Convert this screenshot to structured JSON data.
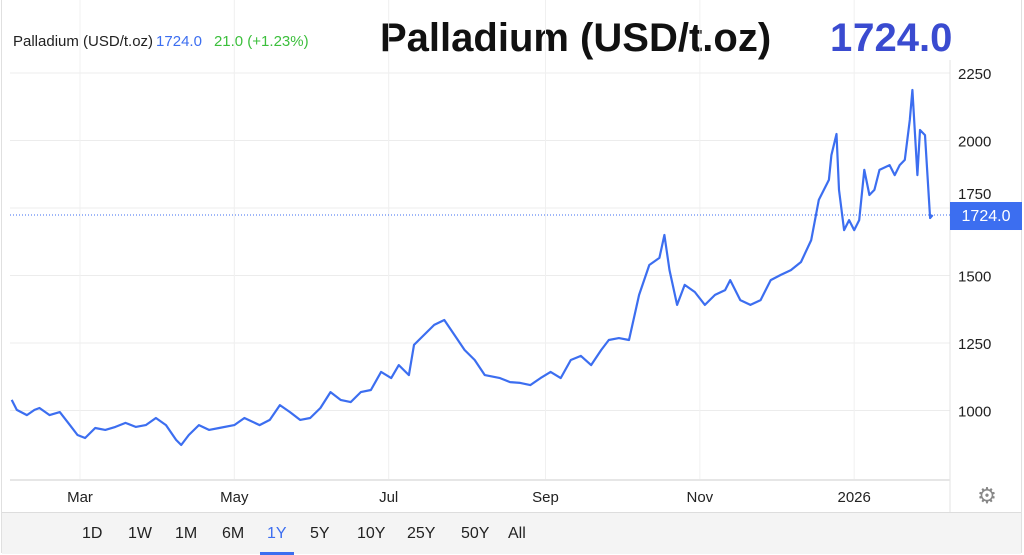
{
  "header": {
    "legend_name": "Palladium (USD/t.oz)",
    "legend_last": "1724.0",
    "legend_change": "21.0 (+1.23%)",
    "title": "Palladium (USD/t.oz)",
    "price": "1724.0"
  },
  "colors": {
    "line": "#3c6ef0",
    "change_positive": "#3cbf3c",
    "price_badge": "#3c6ef0",
    "title_price": "#3a4bd0"
  },
  "range_buttons": [
    {
      "label": "1D"
    },
    {
      "label": "1W"
    },
    {
      "label": "1M"
    },
    {
      "label": "6M"
    },
    {
      "label": "1Y",
      "active": true
    },
    {
      "label": "5Y"
    },
    {
      "label": "10Y"
    },
    {
      "label": "25Y"
    },
    {
      "label": "50Y"
    },
    {
      "label": "All"
    }
  ],
  "settings_icon": "gear-icon",
  "chart_data": {
    "type": "line",
    "title": "Palladium (USD/t.oz)",
    "xlabel": "",
    "ylabel": "",
    "ylim": [
      742,
      2300
    ],
    "grid": true,
    "y_axis_side": "right",
    "y_ticks": [
      1000,
      1250,
      1500,
      1750,
      2000,
      2250
    ],
    "x_ticks": [
      {
        "label": "Mar",
        "date": "2025-03-01"
      },
      {
        "label": "May",
        "date": "2025-05-01"
      },
      {
        "label": "Jul",
        "date": "2025-07-01"
      },
      {
        "label": "Sep",
        "date": "2025-09-01"
      },
      {
        "label": "Nov",
        "date": "2025-11-01"
      },
      {
        "label": "2026",
        "date": "2026-01-01"
      }
    ],
    "last_value": 1724.0,
    "last_value_label": "1724.0",
    "series": [
      {
        "points": [
          [
            "2025-02-02",
            1039
          ],
          [
            "2025-02-04",
            1002
          ],
          [
            "2025-02-08",
            983
          ],
          [
            "2025-02-11",
            1002
          ],
          [
            "2025-02-13",
            1009
          ],
          [
            "2025-02-17",
            983
          ],
          [
            "2025-02-21",
            994
          ],
          [
            "2025-02-25",
            946
          ],
          [
            "2025-02-28",
            909
          ],
          [
            "2025-03-03",
            898
          ],
          [
            "2025-03-07",
            935
          ],
          [
            "2025-03-11",
            928
          ],
          [
            "2025-03-15",
            939
          ],
          [
            "2025-03-19",
            954
          ],
          [
            "2025-03-23",
            939
          ],
          [
            "2025-03-27",
            946
          ],
          [
            "2025-03-31",
            972
          ],
          [
            "2025-04-04",
            946
          ],
          [
            "2025-04-08",
            891
          ],
          [
            "2025-04-10",
            872
          ],
          [
            "2025-04-13",
            909
          ],
          [
            "2025-04-17",
            946
          ],
          [
            "2025-04-21",
            928
          ],
          [
            "2025-04-25",
            935
          ],
          [
            "2025-05-01",
            946
          ],
          [
            "2025-05-05",
            972
          ],
          [
            "2025-05-11",
            946
          ],
          [
            "2025-05-15",
            965
          ],
          [
            "2025-05-19",
            1020
          ],
          [
            "2025-05-23",
            994
          ],
          [
            "2025-05-27",
            965
          ],
          [
            "2025-05-31",
            972
          ],
          [
            "2025-06-04",
            1009
          ],
          [
            "2025-06-08",
            1068
          ],
          [
            "2025-06-12",
            1039
          ],
          [
            "2025-06-16",
            1031
          ],
          [
            "2025-06-20",
            1068
          ],
          [
            "2025-06-24",
            1076
          ],
          [
            "2025-06-28",
            1143
          ],
          [
            "2025-07-02",
            1120
          ],
          [
            "2025-07-05",
            1168
          ],
          [
            "2025-07-09",
            1131
          ],
          [
            "2025-07-11",
            1243
          ],
          [
            "2025-07-15",
            1280
          ],
          [
            "2025-07-19",
            1317
          ],
          [
            "2025-07-23",
            1335
          ],
          [
            "2025-07-27",
            1280
          ],
          [
            "2025-07-31",
            1224
          ],
          [
            "2025-08-04",
            1187
          ],
          [
            "2025-08-08",
            1131
          ],
          [
            "2025-08-14",
            1120
          ],
          [
            "2025-08-18",
            1105
          ],
          [
            "2025-08-22",
            1102
          ],
          [
            "2025-08-26",
            1094
          ],
          [
            "2025-08-30",
            1120
          ],
          [
            "2025-09-03",
            1143
          ],
          [
            "2025-09-07",
            1120
          ],
          [
            "2025-09-11",
            1187
          ],
          [
            "2025-09-15",
            1202
          ],
          [
            "2025-09-19",
            1168
          ],
          [
            "2025-09-23",
            1224
          ],
          [
            "2025-09-26",
            1261
          ],
          [
            "2025-09-30",
            1268
          ],
          [
            "2025-10-04",
            1261
          ],
          [
            "2025-10-08",
            1428
          ],
          [
            "2025-10-12",
            1539
          ],
          [
            "2025-10-16",
            1565
          ],
          [
            "2025-10-18",
            1650
          ],
          [
            "2025-10-20",
            1520
          ],
          [
            "2025-10-23",
            1391
          ],
          [
            "2025-10-26",
            1465
          ],
          [
            "2025-10-30",
            1439
          ],
          [
            "2025-11-03",
            1391
          ],
          [
            "2025-11-07",
            1428
          ],
          [
            "2025-11-11",
            1446
          ],
          [
            "2025-11-13",
            1483
          ],
          [
            "2025-11-17",
            1409
          ],
          [
            "2025-11-21",
            1391
          ],
          [
            "2025-11-25",
            1409
          ],
          [
            "2025-11-29",
            1483
          ],
          [
            "2025-12-03",
            1502
          ],
          [
            "2025-12-07",
            1520
          ],
          [
            "2025-12-11",
            1550
          ],
          [
            "2025-12-15",
            1631
          ],
          [
            "2025-12-18",
            1780
          ],
          [
            "2025-12-22",
            1854
          ],
          [
            "2025-12-23",
            1946
          ],
          [
            "2025-12-25",
            2024
          ],
          [
            "2025-12-26",
            1817
          ],
          [
            "2025-12-28",
            1668
          ],
          [
            "2025-12-30",
            1705
          ],
          [
            "2026-01-01",
            1668
          ],
          [
            "2026-01-03",
            1705
          ],
          [
            "2026-01-05",
            1891
          ],
          [
            "2026-01-07",
            1798
          ],
          [
            "2026-01-09",
            1817
          ],
          [
            "2026-01-11",
            1891
          ],
          [
            "2026-01-15",
            1909
          ],
          [
            "2026-01-17",
            1872
          ],
          [
            "2026-01-19",
            1909
          ],
          [
            "2026-01-21",
            1928
          ],
          [
            "2026-01-23",
            2076
          ],
          [
            "2026-01-24",
            2187
          ],
          [
            "2026-01-26",
            1872
          ],
          [
            "2026-01-27",
            2039
          ],
          [
            "2026-01-29",
            2020
          ],
          [
            "2026-01-31",
            1713
          ],
          [
            "2026-02-01",
            1724
          ]
        ]
      }
    ]
  }
}
